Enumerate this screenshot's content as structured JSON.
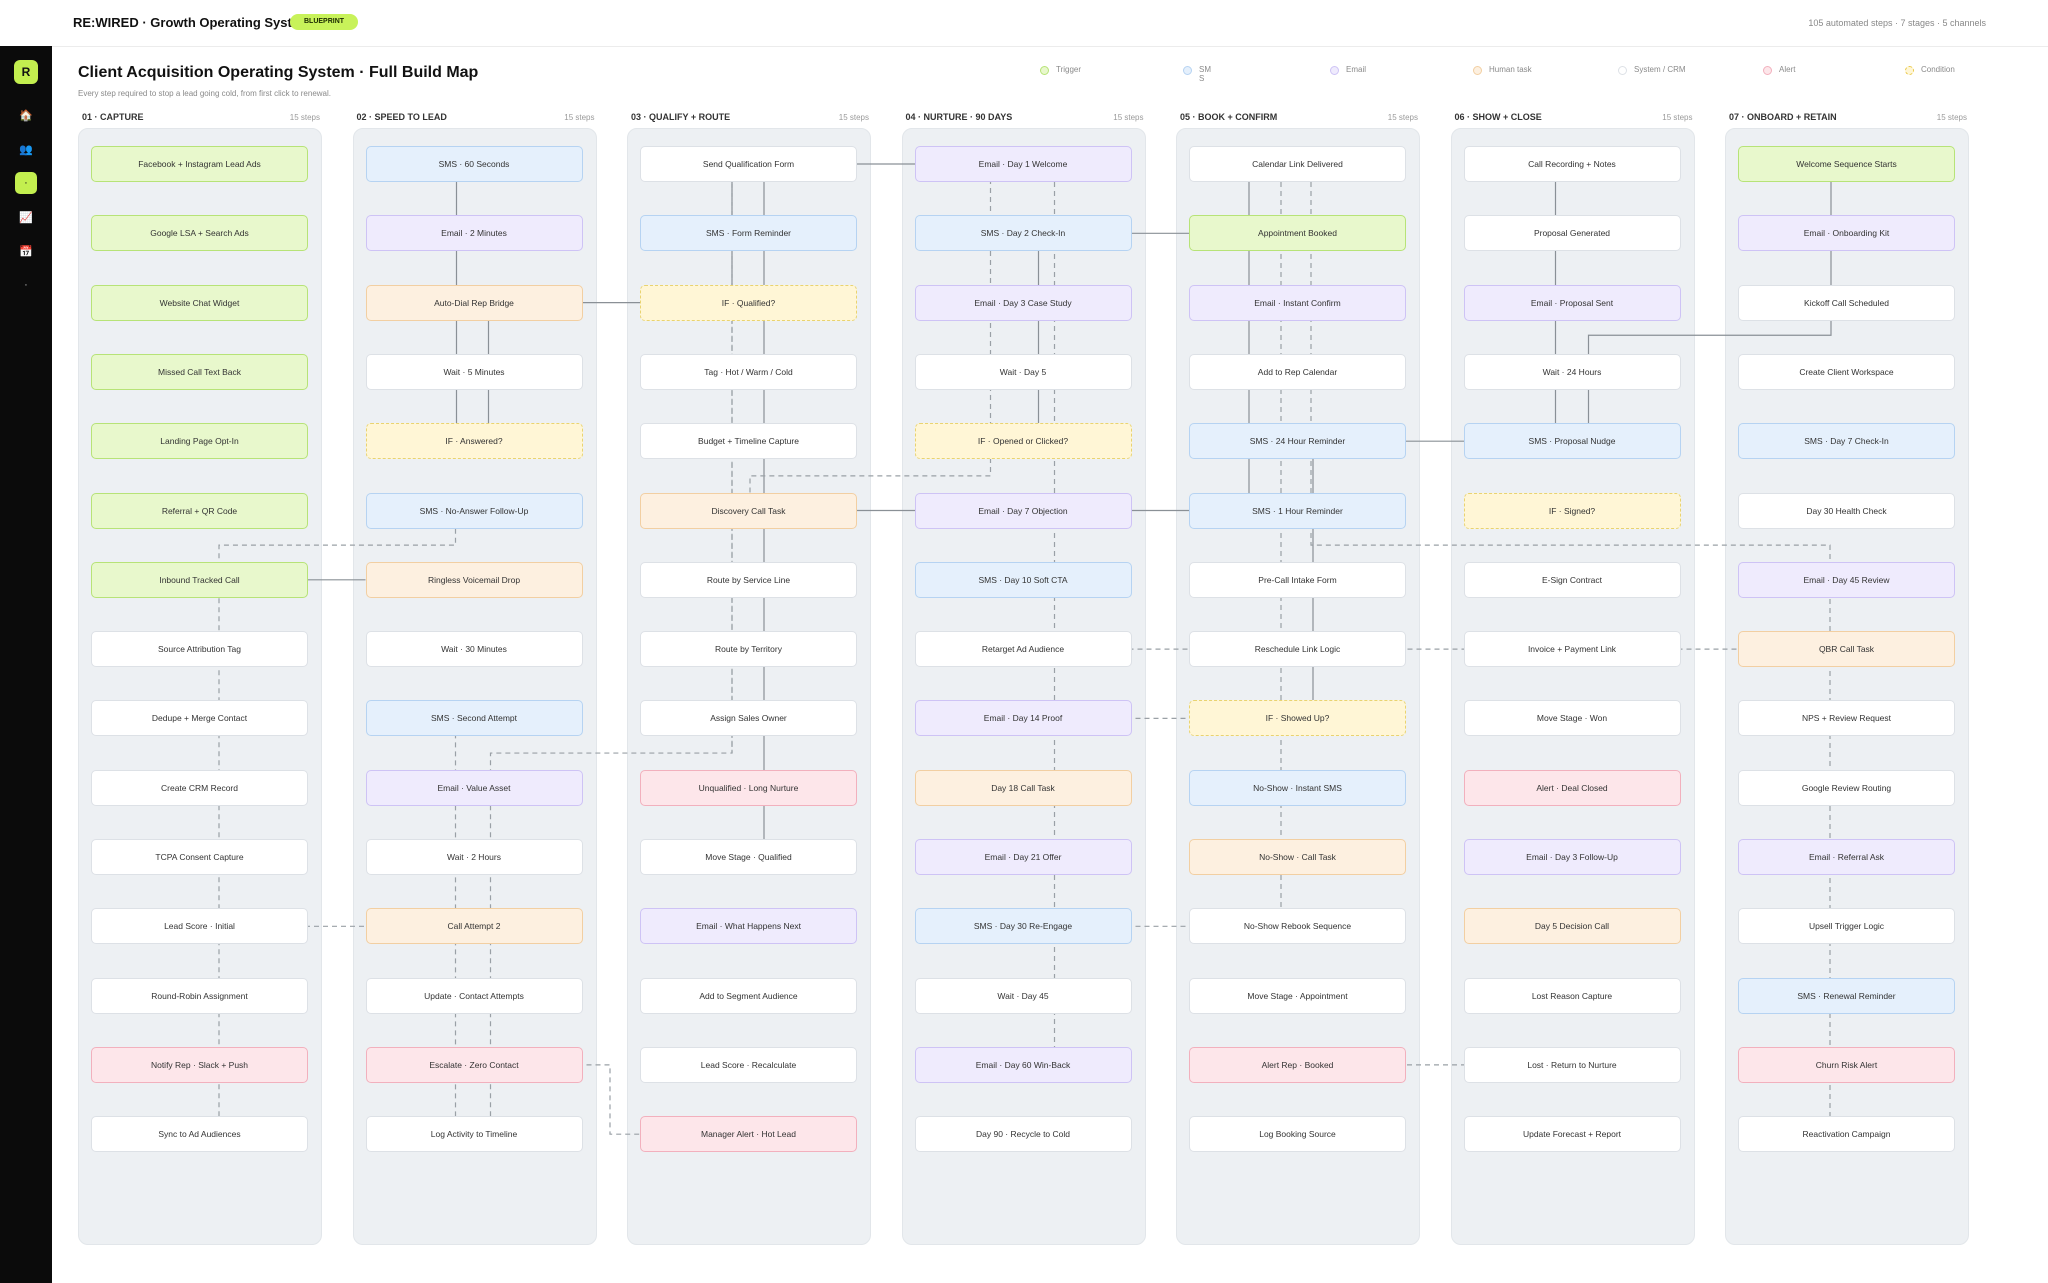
{
  "app": {
    "brand": "RE:WIRED · Growth Operating System",
    "badge": "BLUEPRINT",
    "stats": "105 automated steps · 7 stages · 5 channels"
  },
  "sidebar": {
    "logo": "R",
    "items": [
      {
        "icon": "home-icon",
        "glyph": "🏠"
      },
      {
        "icon": "users-icon",
        "glyph": "👥"
      },
      {
        "icon": "flow-icon",
        "glyph": "·",
        "active": true
      },
      {
        "icon": "chart-icon",
        "glyph": "📈"
      },
      {
        "icon": "calendar-icon",
        "glyph": "📅"
      },
      {
        "icon": "settings-icon",
        "glyph": "·"
      }
    ]
  },
  "page": {
    "title": "Client Acquisition Operating System · Full Build Map",
    "subtitle": "Every step required to stop a lead going cold, from first click to renewal."
  },
  "legend": [
    {
      "type": "trigger",
      "label": "Trigger"
    },
    {
      "type": "sms",
      "label": "SM\nS"
    },
    {
      "type": "email",
      "label": "Email"
    },
    {
      "type": "human",
      "label": "Human task"
    },
    {
      "type": "system",
      "label": "System / CRM"
    },
    {
      "type": "alert",
      "label": "Alert"
    },
    {
      "type": "cond",
      "label": "Condition"
    }
  ],
  "colors": {
    "trigger": "#b7e377",
    "sms": "#b6d3f2",
    "email": "#cec3f5",
    "human": "#f2cfa2",
    "system": "#dde1e6",
    "alert": "#f2b0bd",
    "cond": "#e9c94a"
  },
  "columns": [
    {
      "name": "01 · CAPTURE",
      "count": "15 steps",
      "steps": [
        {
          "label": "Facebook + Instagram Lead Ads",
          "type": "trigger"
        },
        {
          "label": "Google LSA + Search Ads",
          "type": "trigger"
        },
        {
          "label": "Website Chat Widget",
          "type": "trigger"
        },
        {
          "label": "Missed Call Text Back",
          "type": "trigger"
        },
        {
          "label": "Landing Page Opt-In",
          "type": "trigger"
        },
        {
          "label": "Referral + QR Code",
          "type": "trigger"
        },
        {
          "label": "Inbound Tracked Call",
          "type": "trigger"
        },
        {
          "label": "Source Attribution Tag",
          "type": "system"
        },
        {
          "label": "Dedupe + Merge Contact",
          "type": "system"
        },
        {
          "label": "Create CRM Record",
          "type": "system"
        },
        {
          "label": "TCPA Consent Capture",
          "type": "system"
        },
        {
          "label": "Lead Score · Initial",
          "type": "system"
        },
        {
          "label": "Round-Robin Assignment",
          "type": "system"
        },
        {
          "label": "Notify Rep · Slack + Push",
          "type": "alert"
        },
        {
          "label": "Sync to Ad Audiences",
          "type": "system"
        }
      ]
    },
    {
      "name": "02 · SPEED TO LEAD",
      "count": "15 steps",
      "steps": [
        {
          "label": "SMS · 60 Seconds",
          "type": "sms"
        },
        {
          "label": "Email · 2 Minutes",
          "type": "email"
        },
        {
          "label": "Auto-Dial Rep Bridge",
          "type": "human"
        },
        {
          "label": "Wait · 5 Minutes",
          "type": "system"
        },
        {
          "label": "IF · Answered?",
          "type": "cond"
        },
        {
          "label": "SMS · No-Answer Follow-Up",
          "type": "sms"
        },
        {
          "label": "Ringless Voicemail Drop",
          "type": "human"
        },
        {
          "label": "Wait · 30 Minutes",
          "type": "system"
        },
        {
          "label": "SMS · Second Attempt",
          "type": "sms"
        },
        {
          "label": "Email · Value Asset",
          "type": "email"
        },
        {
          "label": "Wait · 2 Hours",
          "type": "system"
        },
        {
          "label": "Call Attempt 2",
          "type": "human"
        },
        {
          "label": "Update · Contact Attempts",
          "type": "system"
        },
        {
          "label": "Escalate · Zero Contact",
          "type": "alert"
        },
        {
          "label": "Log Activity to Timeline",
          "type": "system"
        }
      ]
    },
    {
      "name": "03 · QUALIFY + ROUTE",
      "count": "15 steps",
      "steps": [
        {
          "label": "Send Qualification Form",
          "type": "system"
        },
        {
          "label": "SMS · Form Reminder",
          "type": "sms"
        },
        {
          "label": "IF · Qualified?",
          "type": "cond"
        },
        {
          "label": "Tag · Hot / Warm / Cold",
          "type": "system"
        },
        {
          "label": "Budget + Timeline Capture",
          "type": "system"
        },
        {
          "label": "Discovery Call Task",
          "type": "human"
        },
        {
          "label": "Route by Service Line",
          "type": "system"
        },
        {
          "label": "Route by Territory",
          "type": "system"
        },
        {
          "label": "Assign Sales Owner",
          "type": "system"
        },
        {
          "label": "Unqualified · Long Nurture",
          "type": "alert"
        },
        {
          "label": "Move Stage · Qualified",
          "type": "system"
        },
        {
          "label": "Email · What Happens Next",
          "type": "email"
        },
        {
          "label": "Add to Segment Audience",
          "type": "system"
        },
        {
          "label": "Lead Score · Recalculate",
          "type": "system"
        },
        {
          "label": "Manager Alert · Hot Lead",
          "type": "alert"
        }
      ]
    },
    {
      "name": "04 · NURTURE · 90 DAYS",
      "count": "15 steps",
      "steps": [
        {
          "label": "Email · Day 1 Welcome",
          "type": "email"
        },
        {
          "label": "SMS · Day 2 Check-In",
          "type": "sms"
        },
        {
          "label": "Email · Day 3 Case Study",
          "type": "email"
        },
        {
          "label": "Wait · Day 5",
          "type": "system"
        },
        {
          "label": "IF · Opened or Clicked?",
          "type": "cond"
        },
        {
          "label": "Email · Day 7 Objection",
          "type": "email"
        },
        {
          "label": "SMS · Day 10 Soft CTA",
          "type": "sms"
        },
        {
          "label": "Retarget Ad Audience",
          "type": "system"
        },
        {
          "label": "Email · Day 14 Proof",
          "type": "email"
        },
        {
          "label": "Day 18 Call Task",
          "type": "human"
        },
        {
          "label": "Email · Day 21 Offer",
          "type": "email"
        },
        {
          "label": "SMS · Day 30 Re-Engage",
          "type": "sms"
        },
        {
          "label": "Wait · Day 45",
          "type": "system"
        },
        {
          "label": "Email · Day 60 Win-Back",
          "type": "email"
        },
        {
          "label": "Day 90 · Recycle to Cold",
          "type": "system"
        }
      ]
    },
    {
      "name": "05 · BOOK + CONFIRM",
      "count": "15 steps",
      "steps": [
        {
          "label": "Calendar Link Delivered",
          "type": "system"
        },
        {
          "label": "Appointment Booked",
          "type": "trigger"
        },
        {
          "label": "Email · Instant Confirm",
          "type": "email"
        },
        {
          "label": "Add to Rep Calendar",
          "type": "system"
        },
        {
          "label": "SMS · 24 Hour Reminder",
          "type": "sms"
        },
        {
          "label": "SMS · 1 Hour Reminder",
          "type": "sms"
        },
        {
          "label": "Pre-Call Intake Form",
          "type": "system"
        },
        {
          "label": "Reschedule Link Logic",
          "type": "system"
        },
        {
          "label": "IF · Showed Up?",
          "type": "cond"
        },
        {
          "label": "No-Show · Instant SMS",
          "type": "sms"
        },
        {
          "label": "No-Show · Call Task",
          "type": "human"
        },
        {
          "label": "No-Show Rebook Sequence",
          "type": "system"
        },
        {
          "label": "Move Stage · Appointment",
          "type": "system"
        },
        {
          "label": "Alert Rep · Booked",
          "type": "alert"
        },
        {
          "label": "Log Booking Source",
          "type": "system"
        }
      ]
    },
    {
      "name": "06 · SHOW + CLOSE",
      "count": "15 steps",
      "steps": [
        {
          "label": "Call Recording + Notes",
          "type": "system"
        },
        {
          "label": "Proposal Generated",
          "type": "system"
        },
        {
          "label": "Email · Proposal Sent",
          "type": "email"
        },
        {
          "label": "Wait · 24 Hours",
          "type": "system"
        },
        {
          "label": "SMS · Proposal Nudge",
          "type": "sms"
        },
        {
          "label": "IF · Signed?",
          "type": "cond"
        },
        {
          "label": "E-Sign Contract",
          "type": "system"
        },
        {
          "label": "Invoice + Payment Link",
          "type": "system"
        },
        {
          "label": "Move Stage · Won",
          "type": "system"
        },
        {
          "label": "Alert · Deal Closed",
          "type": "alert"
        },
        {
          "label": "Email · Day 3 Follow-Up",
          "type": "email"
        },
        {
          "label": "Day 5 Decision Call",
          "type": "human"
        },
        {
          "label": "Lost Reason Capture",
          "type": "system"
        },
        {
          "label": "Lost · Return to Nurture",
          "type": "system"
        },
        {
          "label": "Update Forecast + Report",
          "type": "system"
        }
      ]
    },
    {
      "name": "07 · ONBOARD + RETAIN",
      "count": "15 steps",
      "steps": [
        {
          "label": "Welcome Sequence Starts",
          "type": "trigger"
        },
        {
          "label": "Email · Onboarding Kit",
          "type": "email"
        },
        {
          "label": "Kickoff Call Scheduled",
          "type": "system"
        },
        {
          "label": "Create Client Workspace",
          "type": "system"
        },
        {
          "label": "SMS · Day 7 Check-In",
          "type": "sms"
        },
        {
          "label": "Day 30 Health Check",
          "type": "system"
        },
        {
          "label": "Email · Day 45 Review",
          "type": "email"
        },
        {
          "label": "QBR Call Task",
          "type": "human"
        },
        {
          "label": "NPS + Review Request",
          "type": "system"
        },
        {
          "label": "Google Review Routing",
          "type": "system"
        },
        {
          "label": "Email · Referral Ask",
          "type": "email"
        },
        {
          "label": "Upsell Trigger Logic",
          "type": "system"
        },
        {
          "label": "SMS · Renewal Reminder",
          "type": "sms"
        },
        {
          "label": "Churn Risk Alert",
          "type": "alert"
        },
        {
          "label": "Reactivation Campaign",
          "type": "system"
        }
      ]
    }
  ]
}
